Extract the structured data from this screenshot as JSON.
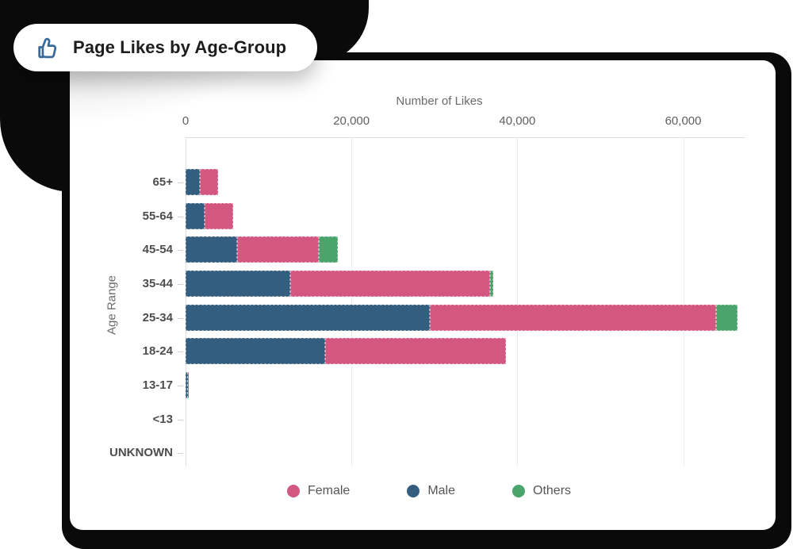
{
  "badge": {
    "title": "Page Likes by Age-Group",
    "icon": "thumbs-up-icon",
    "icon_color": "#3a6a99"
  },
  "chart_data": {
    "type": "bar",
    "orientation": "horizontal",
    "stacked": true,
    "xlabel": "Number of Likes",
    "ylabel": "Age Range",
    "categories": [
      "65+",
      "55-64",
      "45-54",
      "35-44",
      "25-34",
      "18-24",
      "13-17",
      "<13",
      "UNKNOWN"
    ],
    "series": [
      {
        "name": "Male",
        "color": "#335e80",
        "values": [
          1700,
          2300,
          6200,
          12600,
          29400,
          16800,
          300,
          0,
          0
        ]
      },
      {
        "name": "Female",
        "color": "#d4577f",
        "values": [
          2200,
          3400,
          9900,
          24100,
          34600,
          21800,
          130,
          0,
          0
        ]
      },
      {
        "name": "Others",
        "color": "#49a56b",
        "values": [
          0,
          0,
          2300,
          400,
          2500,
          0,
          0,
          0,
          0
        ]
      }
    ],
    "legend": [
      {
        "label": "Female",
        "color": "#d4577f"
      },
      {
        "label": "Male",
        "color": "#335e80"
      },
      {
        "label": "Others",
        "color": "#49a56b"
      }
    ],
    "legend_position": "bottom",
    "x_ticks": [
      {
        "value": 0,
        "label": "0"
      },
      {
        "value": 20000,
        "label": "20,000"
      },
      {
        "value": 40000,
        "label": "40,000"
      },
      {
        "value": 60000,
        "label": "60,000"
      }
    ],
    "xlim": [
      0,
      67500
    ],
    "grid": true
  },
  "colors": {
    "backdrop": "#0a0a0a",
    "card": "#ffffff",
    "axis_text": "#5f5f5f",
    "category_text": "#4d4d4d"
  }
}
